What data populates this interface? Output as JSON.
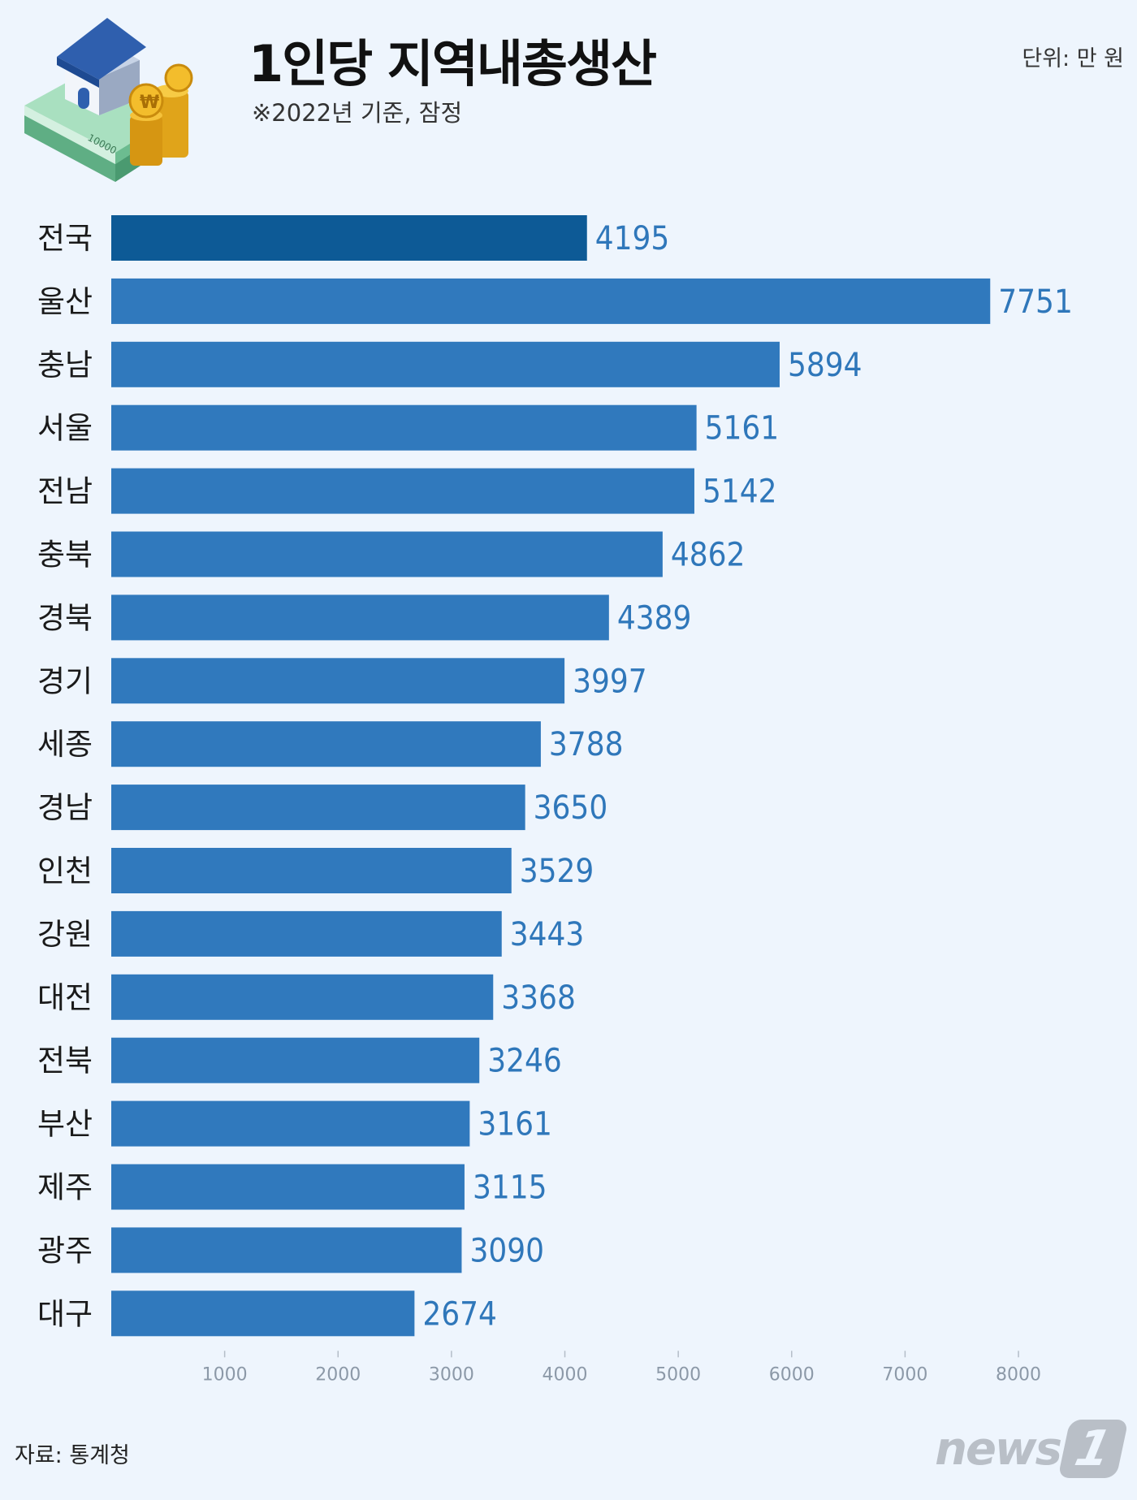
{
  "header": {
    "title": "1인당 지역내총생산",
    "subtitle": "※2022년 기준, 잠정",
    "unit": "단위: 만 원"
  },
  "illustration": {
    "banknote_text": "10000",
    "coin_symbol": "₩"
  },
  "chart_data": {
    "type": "bar",
    "orientation": "horizontal",
    "categories": [
      "전국",
      "울산",
      "충남",
      "서울",
      "전남",
      "충북",
      "경북",
      "경기",
      "세종",
      "경남",
      "인천",
      "강원",
      "대전",
      "전북",
      "부산",
      "제주",
      "광주",
      "대구"
    ],
    "values": [
      4195,
      7751,
      5894,
      5161,
      5142,
      4862,
      4389,
      3997,
      3788,
      3650,
      3529,
      3443,
      3368,
      3246,
      3161,
      3115,
      3090,
      2674
    ],
    "highlight_index": 0,
    "x_ticks": [
      1000,
      2000,
      3000,
      4000,
      5000,
      6000,
      7000,
      8000
    ],
    "xlim": [
      0,
      8000
    ],
    "colors": {
      "highlight": "#0d5a96",
      "bar": "#3079bd",
      "value_label": "#2f77ba"
    }
  },
  "footer": {
    "source": "자료: 통계청",
    "logo_text": "news",
    "logo_badge": "1"
  }
}
